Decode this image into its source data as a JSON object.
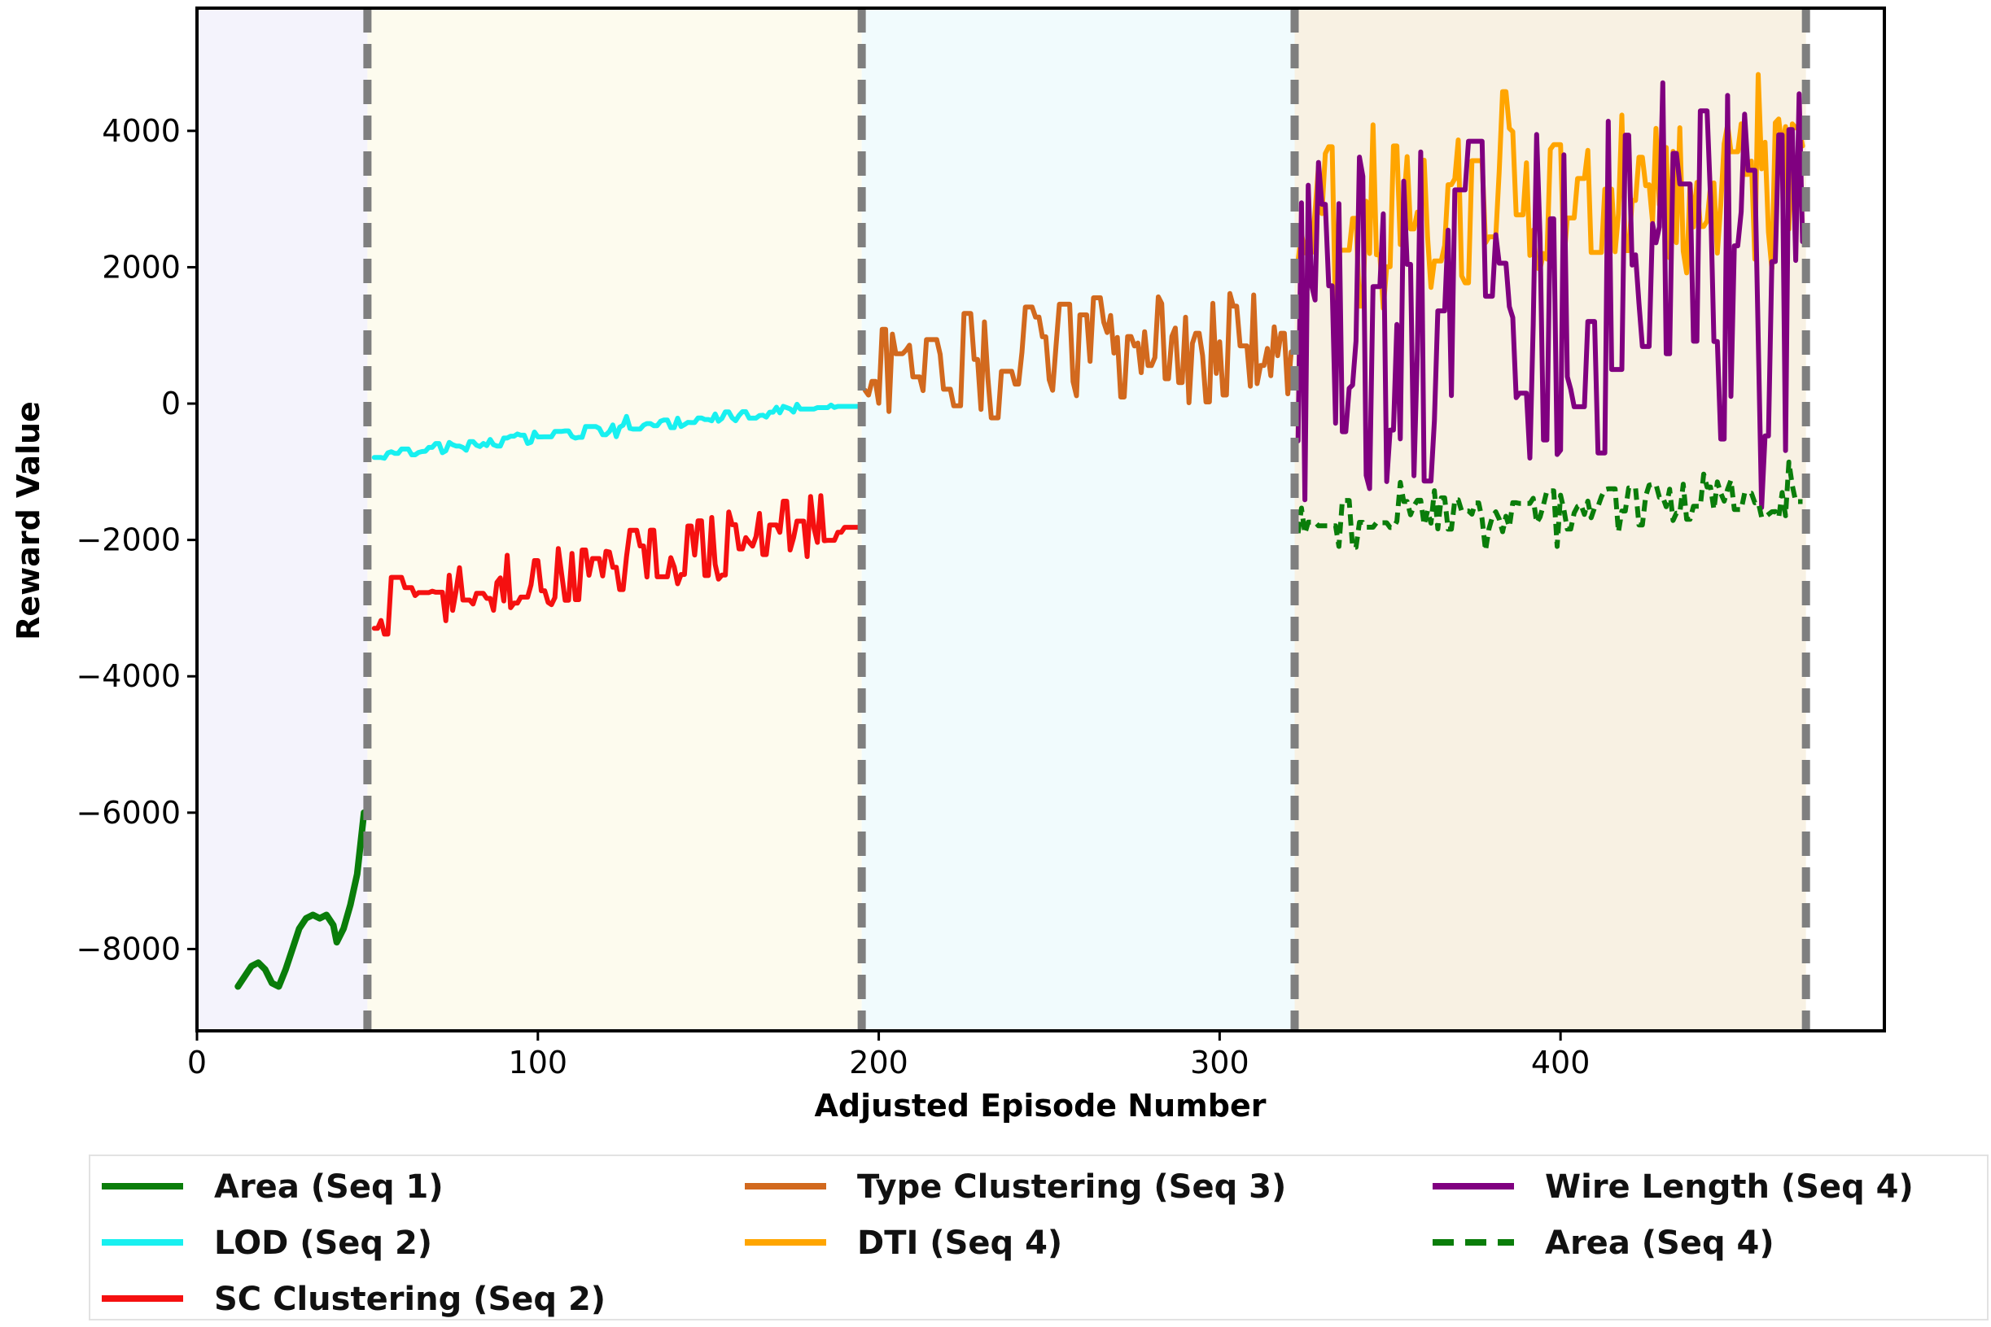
{
  "chart_data": {
    "type": "line",
    "xlabel": "Adjusted Episode Number",
    "ylabel": "Reward Value",
    "xlim": [
      0,
      495
    ],
    "ylim": [
      -9200,
      5800
    ],
    "x_ticks": [
      0,
      100,
      200,
      300,
      400
    ],
    "x_tick_labels": [
      "0",
      "100",
      "200",
      "300",
      "400"
    ],
    "y_ticks": [
      -8000,
      -6000,
      -4000,
      -2000,
      0,
      2000,
      4000
    ],
    "y_tick_labels": [
      "−8000",
      "−6000",
      "−4000",
      "−2000",
      "0",
      "2000",
      "4000"
    ],
    "grid": false,
    "legend_position": "bottom",
    "stage_boundaries": [
      50,
      195,
      322,
      472
    ],
    "stage_shading": [
      {
        "x_start": 0,
        "x_end": 50,
        "color": "#f4f3fc"
      },
      {
        "x_start": 50,
        "x_end": 195,
        "color": "#fdfbee"
      },
      {
        "x_start": 195,
        "x_end": 322,
        "color": "#f1fbfd"
      },
      {
        "x_start": 322,
        "x_end": 472,
        "color": "#f8f1e3"
      }
    ],
    "series": [
      {
        "name": "Area (Seq 1)",
        "color": "#0a7d0a",
        "dash": "solid",
        "width": 8,
        "x_range": [
          12,
          49
        ],
        "start": -8500,
        "end": -6000,
        "amplitude": 200,
        "noise": 0,
        "seed": 1,
        "points": [
          [
            12,
            -8550
          ],
          [
            14,
            -8400
          ],
          [
            16,
            -8250
          ],
          [
            18,
            -8200
          ],
          [
            20,
            -8300
          ],
          [
            22,
            -8500
          ],
          [
            24,
            -8550
          ],
          [
            26,
            -8300
          ],
          [
            28,
            -8000
          ],
          [
            30,
            -7700
          ],
          [
            32,
            -7550
          ],
          [
            34,
            -7500
          ],
          [
            36,
            -7550
          ],
          [
            38,
            -7500
          ],
          [
            40,
            -7650
          ],
          [
            41,
            -7900
          ],
          [
            43,
            -7700
          ],
          [
            45,
            -7350
          ],
          [
            47,
            -6900
          ],
          [
            49,
            -6000
          ]
        ]
      },
      {
        "name": "LOD (Seq 2)",
        "color": "#18f0f0",
        "dash": "solid",
        "width": 6,
        "x_range": [
          52,
          194
        ],
        "start": -750,
        "end": 20,
        "amplitude": 180,
        "noise": 0.55,
        "seed": 7
      },
      {
        "name": "SC Clustering (Seq 2)",
        "color": "#f51010",
        "dash": "solid",
        "width": 6,
        "x_range": [
          52,
          194
        ],
        "start": -3050,
        "end": -1650,
        "amplitude": 700,
        "noise": 0.85,
        "seed": 13
      },
      {
        "name": "Type Clustering (Seq 3)",
        "color": "#d2691e",
        "dash": "solid",
        "width": 6,
        "x_range": [
          196,
          321
        ],
        "start": 600,
        "end": 900,
        "amplitude": 1100,
        "noise": 0.9,
        "seed": 21
      },
      {
        "name": "DTI (Seq 4)",
        "color": "#ffa500",
        "dash": "solid",
        "width": 6,
        "x_range": [
          323,
          471
        ],
        "start": 2700,
        "end": 3200,
        "amplitude": 1600,
        "noise": 0.95,
        "seed": 33
      },
      {
        "name": "Wire Length (Seq 4)",
        "color": "#800080",
        "dash": "solid",
        "width": 6,
        "x_range": [
          323,
          471
        ],
        "start": 800,
        "end": 2000,
        "amplitude": 3400,
        "noise": 1.0,
        "seed": 41
      },
      {
        "name": "Area (Seq 4)",
        "color": "#0a7d0a",
        "dash": "dashed",
        "width": 6,
        "x_range": [
          323,
          471
        ],
        "start": -1750,
        "end": -1350,
        "amplitude": 550,
        "noise": 0.7,
        "seed": 57
      }
    ]
  }
}
